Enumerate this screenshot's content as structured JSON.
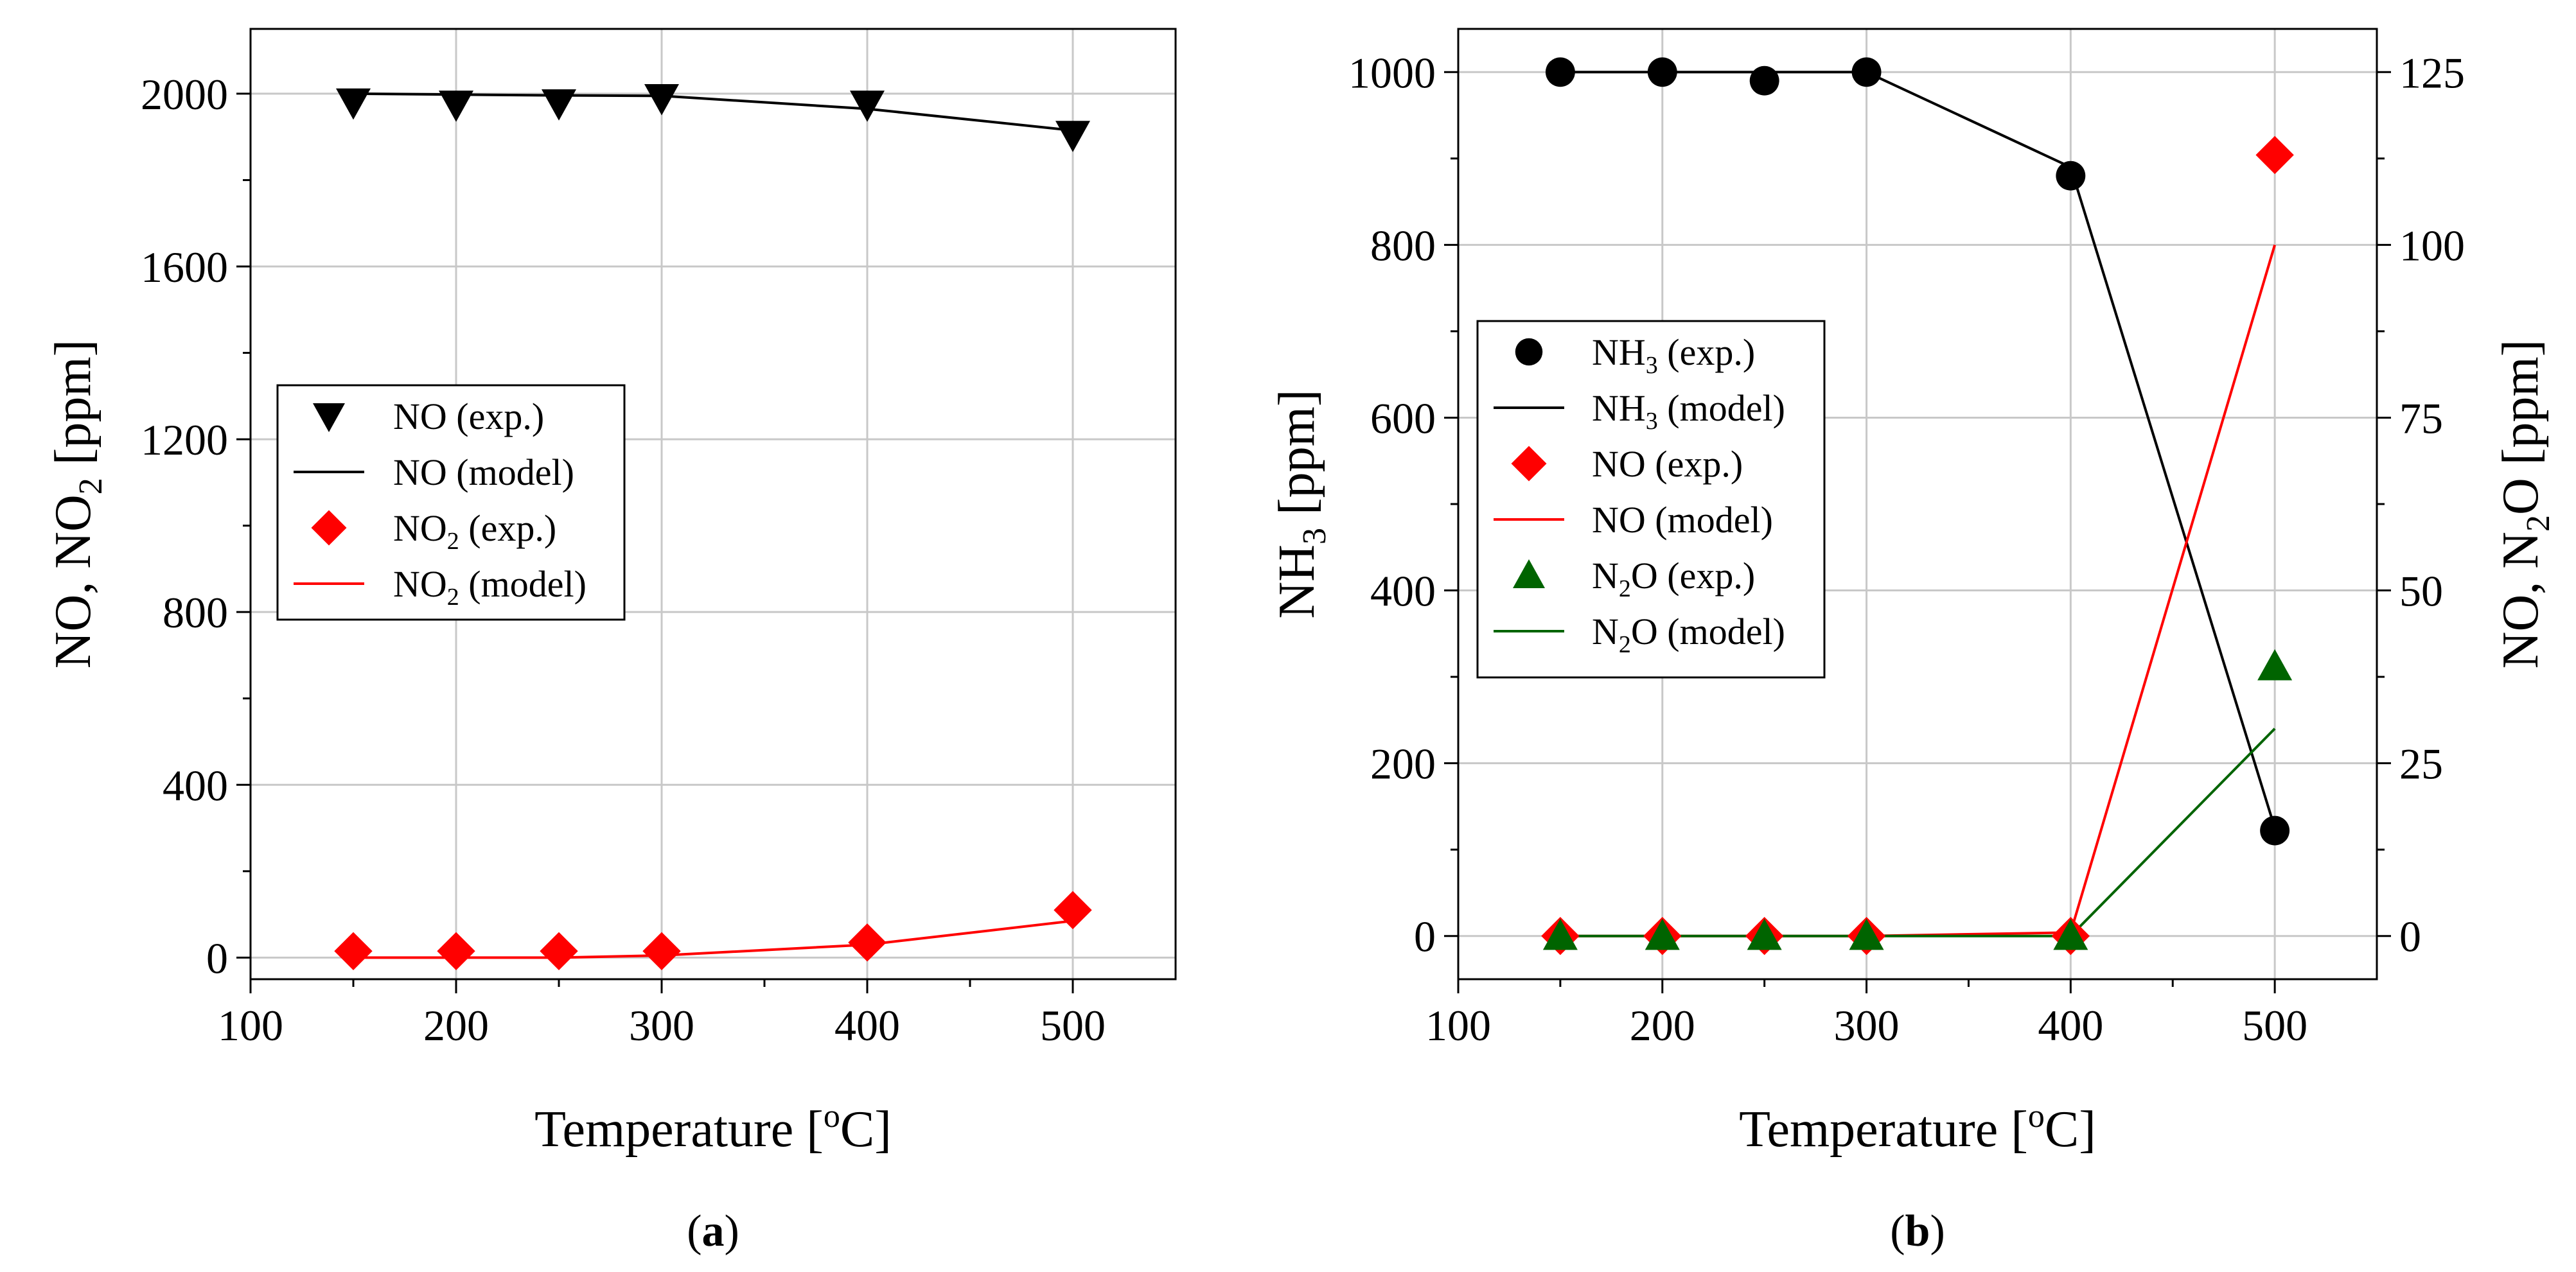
{
  "chart_data": [
    {
      "type": "line",
      "panel_label": "a",
      "xlabel": "Temperature [°C]",
      "xlabel_parts": {
        "pre": "Temperature [",
        "sup": "o",
        "post": "C]"
      },
      "ylabel": "NO, NO2 [ppm]",
      "ylabel_parts": {
        "pre": "NO, NO",
        "sub": "2",
        "post": " [ppm]"
      },
      "xlim": [
        100,
        550
      ],
      "ylim": [
        -50,
        2150
      ],
      "xticks": [
        "100",
        "200",
        "300",
        "400",
        "500"
      ],
      "yticks": [
        "0",
        "400",
        "800",
        "1200",
        "1600",
        "2000"
      ],
      "grid": true,
      "legend_position": "center-left",
      "series": [
        {
          "name": "NO (exp.)",
          "name_parts": {
            "pre": "NO",
            "sub": "",
            "post": " (exp.)"
          },
          "kind": "marker",
          "marker": "triangle-down",
          "color": "#000000",
          "x": [
            150,
            200,
            250,
            300,
            400,
            500
          ],
          "y": [
            1980,
            1975,
            1978,
            1990,
            1975,
            1905
          ]
        },
        {
          "name": "NO (model)",
          "name_parts": {
            "pre": "NO",
            "sub": "",
            "post": " (model)"
          },
          "kind": "line",
          "color": "#000000",
          "x": [
            150,
            200,
            250,
            300,
            400,
            500
          ],
          "y": [
            2000,
            1998,
            1996,
            1995,
            1965,
            1915
          ]
        },
        {
          "name": "NO2 (exp.)",
          "name_parts": {
            "pre": "NO",
            "sub": "2",
            "post": " (exp.)"
          },
          "kind": "marker",
          "marker": "diamond",
          "color": "#ff0000",
          "x": [
            150,
            200,
            250,
            300,
            400,
            500
          ],
          "y": [
            15,
            15,
            15,
            15,
            35,
            110
          ]
        },
        {
          "name": "NO2 (model)",
          "name_parts": {
            "pre": "NO",
            "sub": "2",
            "post": " (model)"
          },
          "kind": "line",
          "color": "#ff0000",
          "x": [
            150,
            200,
            250,
            300,
            400,
            500
          ],
          "y": [
            0,
            0,
            0,
            5,
            30,
            85
          ]
        }
      ]
    },
    {
      "type": "line",
      "panel_label": "b",
      "xlabel": "Temperature [°C]",
      "xlabel_parts": {
        "pre": "Temperature [",
        "sup": "o",
        "post": "C]"
      },
      "ylabel": "NH3 [ppm]",
      "ylabel_parts": {
        "pre": "NH",
        "sub": "3",
        "post": " [ppm]"
      },
      "y2label": "NO, N2O [ppm]",
      "y2label_parts": {
        "pre": "NO, N",
        "sub": "2",
        "post": "O [ppm]"
      },
      "xlim": [
        100,
        550
      ],
      "ylim": [
        -50,
        1050
      ],
      "y2lim": [
        -6.25,
        131.25
      ],
      "xticks": [
        "100",
        "200",
        "300",
        "400",
        "500"
      ],
      "yticks": [
        "0",
        "200",
        "400",
        "600",
        "800",
        "1000"
      ],
      "y2ticks": [
        "0",
        "25",
        "50",
        "75",
        "100",
        "125"
      ],
      "grid": true,
      "legend_position": "top-left",
      "series": [
        {
          "name": "NH3 (exp.)",
          "name_parts": {
            "pre": "NH",
            "sub": "3",
            "post": " (exp.)"
          },
          "kind": "marker",
          "marker": "circle",
          "color": "#000000",
          "axis": "left",
          "x": [
            150,
            200,
            250,
            300,
            400,
            500
          ],
          "y": [
            1000,
            1000,
            990,
            1000,
            880,
            122
          ]
        },
        {
          "name": "NH3 (model)",
          "name_parts": {
            "pre": "NH",
            "sub": "3",
            "post": " (model)"
          },
          "kind": "line",
          "color": "#000000",
          "axis": "left",
          "x": [
            150,
            200,
            250,
            300,
            400,
            500
          ],
          "y": [
            1000,
            1000,
            1000,
            1000,
            890,
            125
          ]
        },
        {
          "name": "NO (exp.)",
          "name_parts": {
            "pre": "NO",
            "sub": "",
            "post": " (exp.)"
          },
          "kind": "marker",
          "marker": "diamond",
          "color": "#ff0000",
          "axis": "right",
          "x": [
            150,
            200,
            250,
            300,
            400,
            500
          ],
          "y": [
            0,
            0,
            0,
            0,
            0,
            113
          ]
        },
        {
          "name": "NO (model)",
          "name_parts": {
            "pre": "NO",
            "sub": "",
            "post": " (model)"
          },
          "kind": "line",
          "color": "#ff0000",
          "axis": "right",
          "x": [
            150,
            200,
            250,
            300,
            400,
            500
          ],
          "y": [
            0,
            0,
            0,
            0,
            0.5,
            100
          ]
        },
        {
          "name": "N2O (exp.)",
          "name_parts": {
            "pre": "N",
            "sub": "2",
            "post": "O (exp.)"
          },
          "kind": "marker",
          "marker": "triangle-up",
          "color": "#006400",
          "axis": "right",
          "x": [
            150,
            200,
            250,
            300,
            400,
            500
          ],
          "y": [
            0,
            0,
            0,
            0,
            0,
            39
          ]
        },
        {
          "name": "N2O (model)",
          "name_parts": {
            "pre": "N",
            "sub": "2",
            "post": "O (model)"
          },
          "kind": "line",
          "color": "#006400",
          "axis": "right",
          "x": [
            150,
            200,
            250,
            300,
            400,
            500
          ],
          "y": [
            0,
            0,
            0,
            0,
            0,
            30
          ]
        }
      ]
    }
  ]
}
